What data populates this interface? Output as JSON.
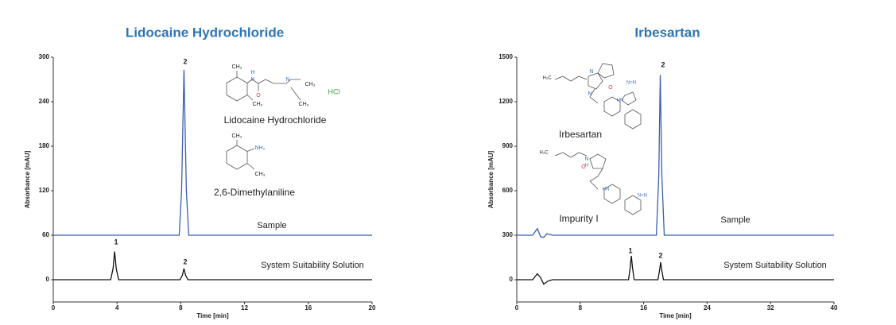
{
  "chart_data": [
    {
      "type": "line",
      "title": "Lidocaine Hydrochloride",
      "x_label": "Time [min]",
      "y_label": "Absorbance [mAU]",
      "xlim": [
        0,
        20
      ],
      "xticks": [
        0,
        4,
        8,
        12,
        16,
        20
      ],
      "ylim": [
        -30,
        300
      ],
      "yticks": [
        0,
        60,
        120,
        180,
        240,
        300
      ],
      "series": [
        {
          "name": "Sample",
          "color": "#3a5fb0",
          "x": [
            0,
            7.9,
            8.05,
            8.2,
            8.35,
            8.5,
            20
          ],
          "values": [
            60,
            60,
            120,
            283,
            120,
            60,
            60
          ]
        },
        {
          "name": "System Suitability Solution",
          "color": "#111111",
          "x": [
            0,
            3.6,
            3.75,
            3.85,
            3.95,
            4.1,
            7.95,
            8.1,
            8.2,
            8.3,
            8.45,
            20
          ],
          "values": [
            0,
            0,
            15,
            38,
            15,
            0,
            0,
            6,
            15,
            6,
            0,
            0
          ]
        }
      ],
      "annotations": [
        "2",
        "1",
        "2",
        "Lidocaine Hydrochloride",
        "2,6-Dimethylaniline",
        "HCl",
        "CH₃",
        "H",
        "N",
        "O",
        "N",
        "CH₃",
        "CH₃",
        "CH₃",
        "CH₃",
        "NH₂",
        "CH₃"
      ]
    },
    {
      "type": "line",
      "title": "Irbesartan",
      "x_label": "Time [min]",
      "y_label": "Absorbance [mAU]",
      "xlim": [
        0,
        40
      ],
      "xticks": [
        0,
        8,
        16,
        24,
        32,
        40
      ],
      "ylim": [
        -150,
        1500
      ],
      "yticks": [
        0,
        300,
        600,
        900,
        1200,
        1500
      ],
      "series": [
        {
          "name": "Sample",
          "color": "#3a5fb0",
          "x": [
            0,
            2,
            2.6,
            3.0,
            3.4,
            3.8,
            4.5,
            5,
            17.6,
            17.9,
            18.1,
            18.3,
            18.6,
            40
          ],
          "values": [
            300,
            300,
            345,
            290,
            285,
            310,
            300,
            300,
            300,
            700,
            1380,
            700,
            300,
            300
          ]
        },
        {
          "name": "System Suitability Solution",
          "color": "#111111",
          "x": [
            0,
            2,
            2.6,
            3.0,
            3.4,
            3.9,
            4.5,
            5,
            14.1,
            14.3,
            14.45,
            14.6,
            14.8,
            17.8,
            18.0,
            18.15,
            18.3,
            18.5,
            40
          ],
          "values": [
            0,
            0,
            40,
            15,
            -30,
            -10,
            0,
            0,
            0,
            80,
            160,
            80,
            0,
            0,
            60,
            118,
            60,
            0,
            0
          ]
        }
      ],
      "annotations": [
        "2",
        "1",
        "2",
        "Irbesartan",
        "Impurity I",
        "H₃C",
        "N",
        "O",
        "N",
        "N=N",
        "HN",
        "H₃C",
        "O",
        "N",
        "H",
        "HN",
        "N=N"
      ]
    }
  ]
}
